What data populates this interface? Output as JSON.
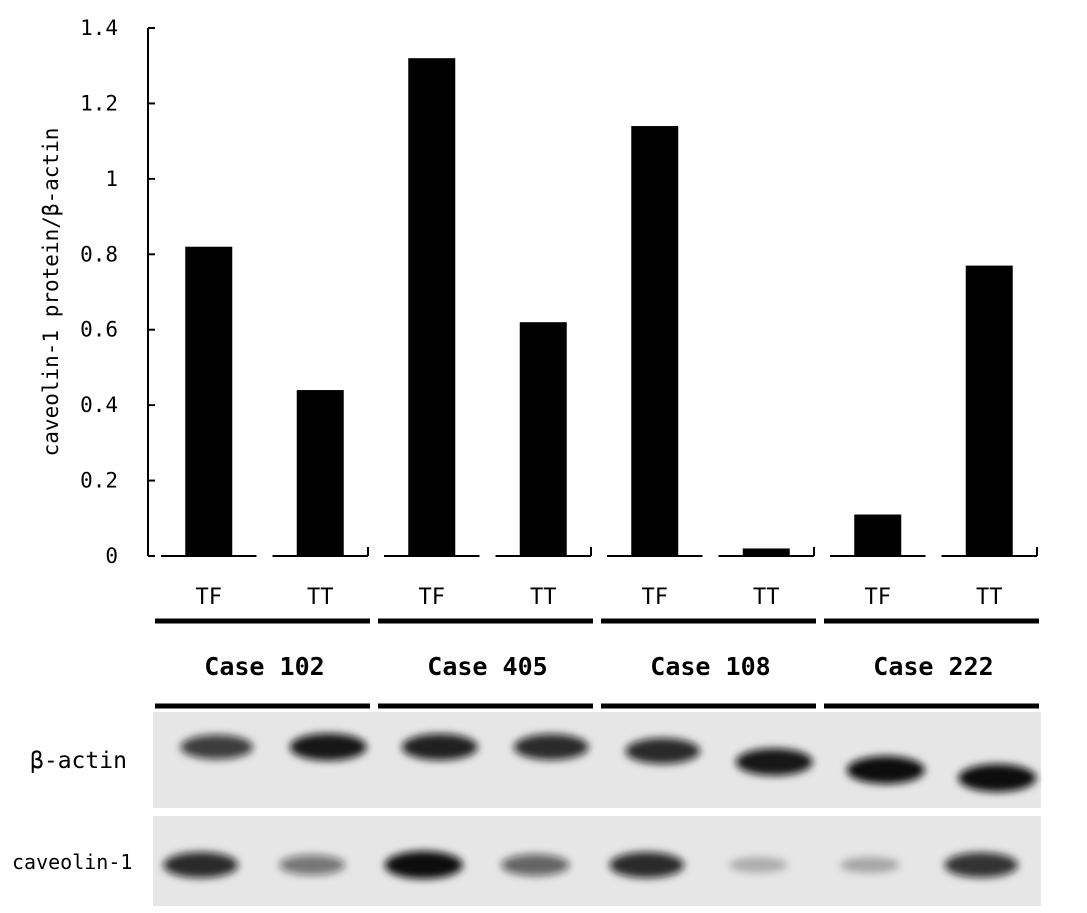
{
  "chart_data": {
    "type": "bar",
    "ylabel": "caveolin-1 protein/β-actin",
    "ylim": [
      0,
      1.4
    ],
    "yticks": [
      {
        "value": 0,
        "label": "0"
      },
      {
        "value": 0.2,
        "label": "0.2"
      },
      {
        "value": 0.4,
        "label": "0.4"
      },
      {
        "value": 0.6,
        "label": "0.6"
      },
      {
        "value": 0.8,
        "label": "0.8"
      },
      {
        "value": 1.0,
        "label": "1"
      },
      {
        "value": 1.2,
        "label": "1.2"
      },
      {
        "value": 1.4,
        "label": "1.4"
      }
    ],
    "categories": [
      "TF",
      "TT",
      "TF",
      "TT",
      "TF",
      "TT",
      "TF",
      "TT"
    ],
    "values": [
      0.82,
      0.44,
      1.32,
      0.62,
      1.14,
      0.02,
      0.11,
      0.77
    ],
    "groups": [
      "Case 102",
      "Case 405",
      "Case 108",
      "Case 222"
    ],
    "grid": false,
    "bar_color": "#000000"
  },
  "blot": {
    "rows": [
      {
        "label": "β-actin",
        "intensities": [
          0.75,
          0.95,
          0.9,
          0.85,
          0.85,
          0.95,
          1.0,
          1.0
        ]
      },
      {
        "label": "caveolin-1",
        "intensities": [
          0.85,
          0.45,
          1.0,
          0.55,
          0.85,
          0.12,
          0.15,
          0.8
        ]
      }
    ],
    "background_color": "#e6e6e6"
  }
}
